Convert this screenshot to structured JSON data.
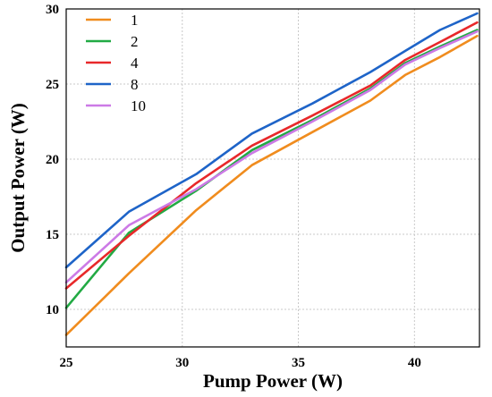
{
  "chart_data": {
    "type": "line",
    "title": "",
    "xlabel": "Pump Power (W)",
    "ylabel": "Output Power (W)",
    "xlim": [
      25,
      42.8
    ],
    "ylim": [
      7.5,
      30
    ],
    "xticks": [
      25,
      30,
      35,
      40
    ],
    "yticks": [
      10,
      15,
      20,
      25,
      30
    ],
    "grid": true,
    "legend_position": "top-left",
    "series": [
      {
        "name": "1",
        "color": "#f08c1e",
        "x": [
          25,
          27.7,
          30.6,
          33,
          35.6,
          38.1,
          39.6,
          41.1,
          42.7
        ],
        "y": [
          8.3,
          12.4,
          16.6,
          19.6,
          21.8,
          23.9,
          25.6,
          26.8,
          28.2
        ]
      },
      {
        "name": "2",
        "color": "#22aa44",
        "x": [
          25,
          27.7,
          30.6,
          33,
          35.6,
          38.1,
          39.6,
          41.1,
          42.7
        ],
        "y": [
          10.1,
          15.1,
          17.9,
          20.6,
          22.6,
          24.7,
          26.4,
          27.5,
          28.6
        ]
      },
      {
        "name": "4",
        "color": "#e8282a",
        "x": [
          25,
          27.7,
          30.6,
          33,
          35.6,
          38.1,
          39.6,
          41.1,
          42.7
        ],
        "y": [
          11.4,
          14.9,
          18.4,
          20.9,
          22.9,
          24.9,
          26.6,
          27.8,
          29.1
        ]
      },
      {
        "name": "8",
        "color": "#1e64c8",
        "x": [
          25,
          27.7,
          30.6,
          33,
          35.6,
          38.1,
          39.6,
          41.1,
          42.7
        ],
        "y": [
          12.8,
          16.5,
          19.0,
          21.7,
          23.7,
          25.8,
          27.2,
          28.6,
          29.7
        ]
      },
      {
        "name": "10",
        "color": "#cc7ae6",
        "x": [
          25,
          27.7,
          30.6,
          33,
          35.6,
          38.1,
          39.6,
          41.1,
          42.7
        ],
        "y": [
          11.8,
          15.6,
          18.0,
          20.4,
          22.5,
          24.6,
          26.3,
          27.4,
          28.5
        ]
      }
    ]
  }
}
